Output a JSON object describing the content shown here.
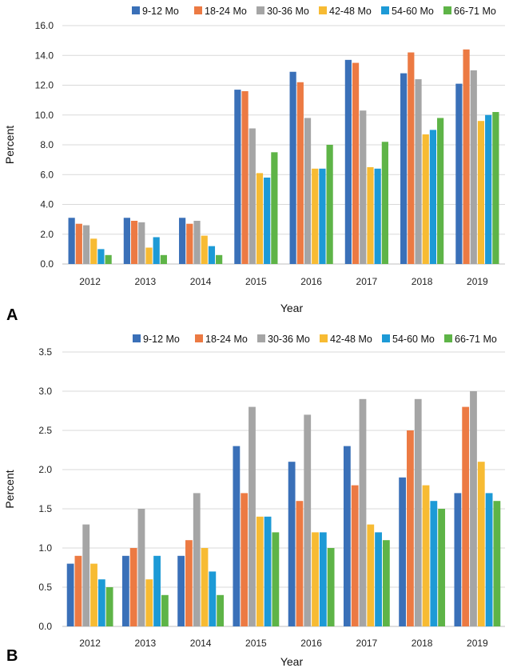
{
  "chart_data": [
    {
      "panel": "A",
      "type": "bar",
      "title": "",
      "xlabel": "Year",
      "ylabel": "Percent",
      "ylim": [
        0,
        16
      ],
      "yticks": [
        "0.0",
        "2.0",
        "4.0",
        "6.0",
        "8.0",
        "10.0",
        "12.0",
        "14.0",
        "16.0"
      ],
      "grid": true,
      "legend_position": "top",
      "categories": [
        "2012",
        "2013",
        "2014",
        "2015",
        "2016",
        "2017",
        "2018",
        "2019"
      ],
      "series": [
        {
          "name": "9-12 Mo",
          "color": "#3a70b8",
          "values": [
            3.1,
            3.1,
            3.1,
            11.7,
            12.9,
            13.7,
            12.8,
            12.1
          ]
        },
        {
          "name": "18-24 Mo",
          "color": "#ec7a43",
          "values": [
            2.7,
            2.9,
            2.7,
            11.6,
            12.2,
            13.5,
            14.2,
            14.4
          ]
        },
        {
          "name": "30-36 Mo",
          "color": "#a5a5a5",
          "values": [
            2.6,
            2.8,
            2.9,
            9.1,
            9.8,
            10.3,
            12.4,
            13.0
          ]
        },
        {
          "name": "42-48 Mo",
          "color": "#f7bb33",
          "values": [
            1.7,
            1.1,
            1.9,
            6.1,
            6.4,
            6.5,
            8.7,
            9.6
          ]
        },
        {
          "name": "54-60 Mo",
          "color": "#1d9ad6",
          "values": [
            1.0,
            1.8,
            1.2,
            5.8,
            6.4,
            6.4,
            9.0,
            10.0
          ]
        },
        {
          "name": "66-71 Mo",
          "color": "#5eb447",
          "values": [
            0.6,
            0.6,
            0.6,
            7.5,
            8.0,
            8.2,
            9.8,
            10.2
          ]
        }
      ]
    },
    {
      "panel": "B",
      "type": "bar",
      "title": "",
      "xlabel": "Year",
      "ylabel": "Percent",
      "ylim": [
        0,
        3.5
      ],
      "yticks": [
        "0.0",
        "0.5",
        "1.0",
        "1.5",
        "2.0",
        "2.5",
        "3.0",
        "3.5"
      ],
      "grid": true,
      "legend_position": "top-right",
      "categories": [
        "2012",
        "2013",
        "2014",
        "2015",
        "2016",
        "2017",
        "2018",
        "2019"
      ],
      "series": [
        {
          "name": "9-12 Mo",
          "color": "#3a70b8",
          "values": [
            0.8,
            0.9,
            0.9,
            2.3,
            2.1,
            2.3,
            1.9,
            1.7
          ]
        },
        {
          "name": "18-24 Mo",
          "color": "#ec7a43",
          "values": [
            0.9,
            1.0,
            1.1,
            1.7,
            1.6,
            1.8,
            2.5,
            2.8
          ]
        },
        {
          "name": "30-36 Mo",
          "color": "#a5a5a5",
          "values": [
            1.3,
            1.5,
            1.7,
            2.8,
            2.7,
            2.9,
            2.9,
            3.0
          ]
        },
        {
          "name": "42-48 Mo",
          "color": "#f7bb33",
          "values": [
            0.8,
            0.6,
            1.0,
            1.4,
            1.2,
            1.3,
            1.8,
            2.1
          ]
        },
        {
          "name": "54-60 Mo",
          "color": "#1d9ad6",
          "values": [
            0.6,
            0.9,
            0.7,
            1.4,
            1.2,
            1.2,
            1.6,
            1.7
          ]
        },
        {
          "name": "66-71 Mo",
          "color": "#5eb447",
          "values": [
            0.5,
            0.4,
            0.4,
            1.2,
            1.0,
            1.1,
            1.5,
            1.6
          ]
        }
      ]
    }
  ]
}
